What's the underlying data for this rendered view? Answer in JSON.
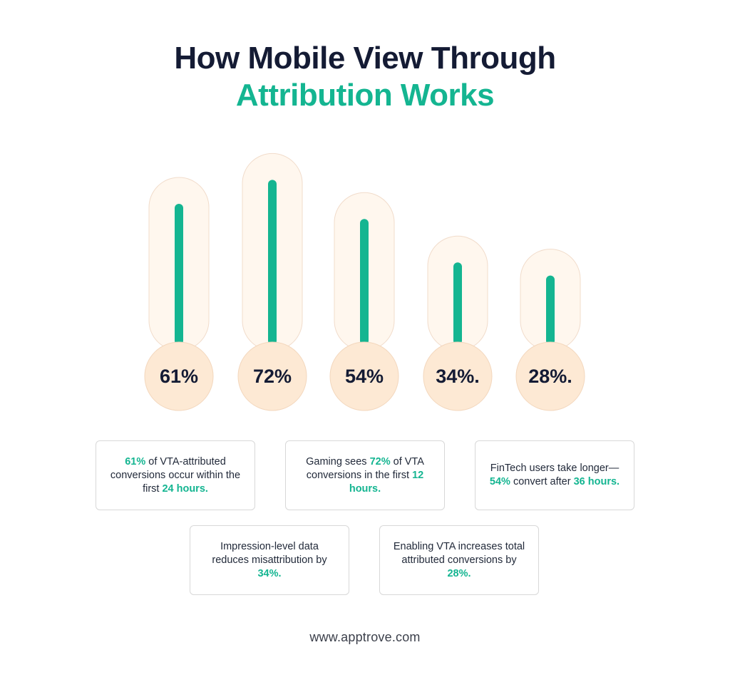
{
  "title": {
    "line1": "How Mobile View Through",
    "line2": "Attribution Works"
  },
  "chart_data": {
    "type": "bar",
    "categories": [
      "61%",
      "72%",
      "54%",
      "34%.",
      "28%."
    ],
    "values": [
      61,
      72,
      54,
      34,
      28
    ],
    "ylim": [
      0,
      100
    ],
    "grid": false,
    "colors": {
      "bar": "#14b591",
      "track": "#fff7ee",
      "bubble": "#fde9d4",
      "label": "#141b34"
    }
  },
  "cards": [
    {
      "parts": [
        {
          "t": "61%",
          "hl": true
        },
        {
          "t": " of VTA-attributed conversions occur within the first ",
          "hl": false
        },
        {
          "t": "24 hours.",
          "hl": true
        }
      ]
    },
    {
      "parts": [
        {
          "t": "Gaming sees ",
          "hl": false
        },
        {
          "t": "72%",
          "hl": true
        },
        {
          "t": " of VTA conversions in the first ",
          "hl": false
        },
        {
          "t": "12 hours.",
          "hl": true
        }
      ]
    },
    {
      "parts": [
        {
          "t": "FinTech users take longer—",
          "hl": false
        },
        {
          "t": "54%",
          "hl": true
        },
        {
          "t": " convert after ",
          "hl": false
        },
        {
          "t": "36 hours.",
          "hl": true
        }
      ]
    },
    {
      "parts": [
        {
          "t": "Impression-level data reduces misattribution by ",
          "hl": false
        },
        {
          "t": "34%.",
          "hl": true
        }
      ]
    },
    {
      "parts": [
        {
          "t": "Enabling VTA increases total attributed conversions by ",
          "hl": false
        },
        {
          "t": "28%.",
          "hl": true
        }
      ]
    }
  ],
  "footer": "www.apptrove.com"
}
